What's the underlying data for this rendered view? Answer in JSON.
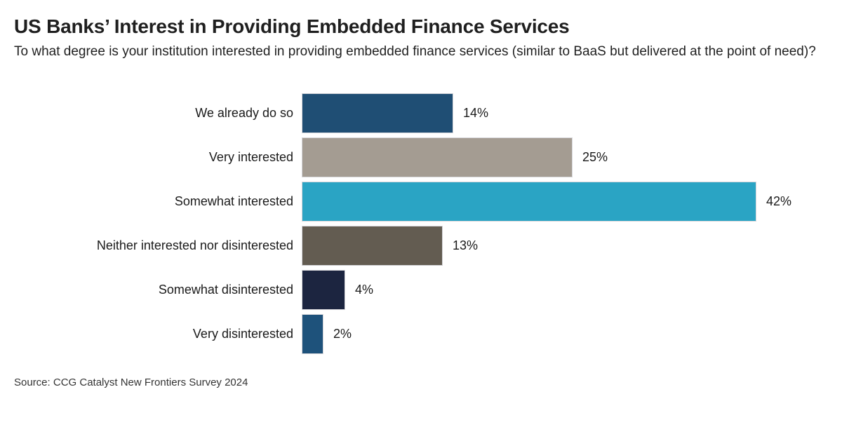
{
  "page": {
    "title": "US Banks’ Interest in Providing Embedded Finance Services",
    "subtitle": "To what degree is your institution interested in providing embedded finance services (similar to BaaS but delivered at the point of need)?",
    "source": "Source: CCG Catalyst New Frontiers Survey 2024"
  },
  "chart_data": {
    "type": "bar",
    "orientation": "horizontal",
    "title": "US Banks’ Interest in Providing Embedded Finance Services",
    "subtitle": "To what degree is your institution interested in providing embedded finance services (similar to BaaS but delivered at the point of need)?",
    "source": "Source: CCG Catalyst New Frontiers Survey 2024",
    "categories": [
      "We already do so",
      "Very interested",
      "Somewhat interested",
      "Neither interested nor disinterested",
      "Somewhat disinterested",
      "Very disinterested"
    ],
    "values": [
      14,
      25,
      42,
      13,
      4,
      2
    ],
    "value_labels": [
      "14%",
      "25%",
      "42%",
      "13%",
      "4%",
      "2%"
    ],
    "bar_colors": [
      "#1F4E74",
      "#A49C92",
      "#2AA4C4",
      "#635C51",
      "#1C2540",
      "#1E527B"
    ],
    "xlabel": "",
    "ylabel": "",
    "xlim": [
      0,
      42
    ],
    "grid": false,
    "legend": false,
    "data_labels": "outside-end"
  }
}
